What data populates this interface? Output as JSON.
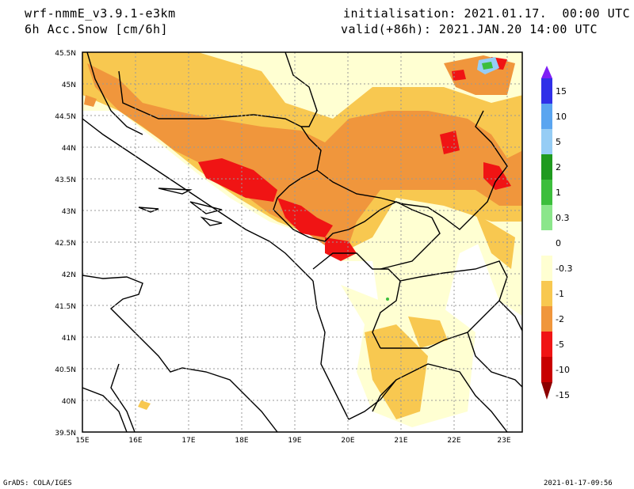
{
  "header": {
    "model": "wrf-nmmE_v3.9.1-e3km",
    "field": "6h Acc.Snow [cm/6h]",
    "init": "initialisation: 2021.01.17.  00:00 UTC",
    "valid": "valid(+86h): 2021.JAN.20 14:00 UTC"
  },
  "map": {
    "lon_range": [
      15,
      23.3
    ],
    "lat_range": [
      39.5,
      45.5
    ],
    "lon_ticks": [
      "15E",
      "16E",
      "17E",
      "18E",
      "19E",
      "20E",
      "21E",
      "22E",
      "23E"
    ],
    "lat_ticks": [
      "45.5N",
      "45N",
      "44.5N",
      "44N",
      "43.5N",
      "43N",
      "42.5N",
      "42N",
      "41.5N",
      "41N",
      "40.5N",
      "40N",
      "39.5N"
    ]
  },
  "colorbar": {
    "labels": [
      "15",
      "10",
      "5",
      "2",
      "1",
      "0.3",
      "0",
      "-0.3",
      "-1",
      "-2",
      "-5",
      "-10",
      "-15"
    ],
    "colors": [
      "#7f1ff5",
      "#3030e8",
      "#5aa5f0",
      "#96cdf5",
      "#1f9a1f",
      "#3cbe3c",
      "#8be68b",
      "#ffffff",
      "#ffffd2",
      "#f8c850",
      "#f0963c",
      "#f01414",
      "#c80000",
      "#8c0000"
    ]
  },
  "footer": {
    "left": "GrADS: COLA/IGES",
    "right": "2021-01-17-09:56"
  }
}
